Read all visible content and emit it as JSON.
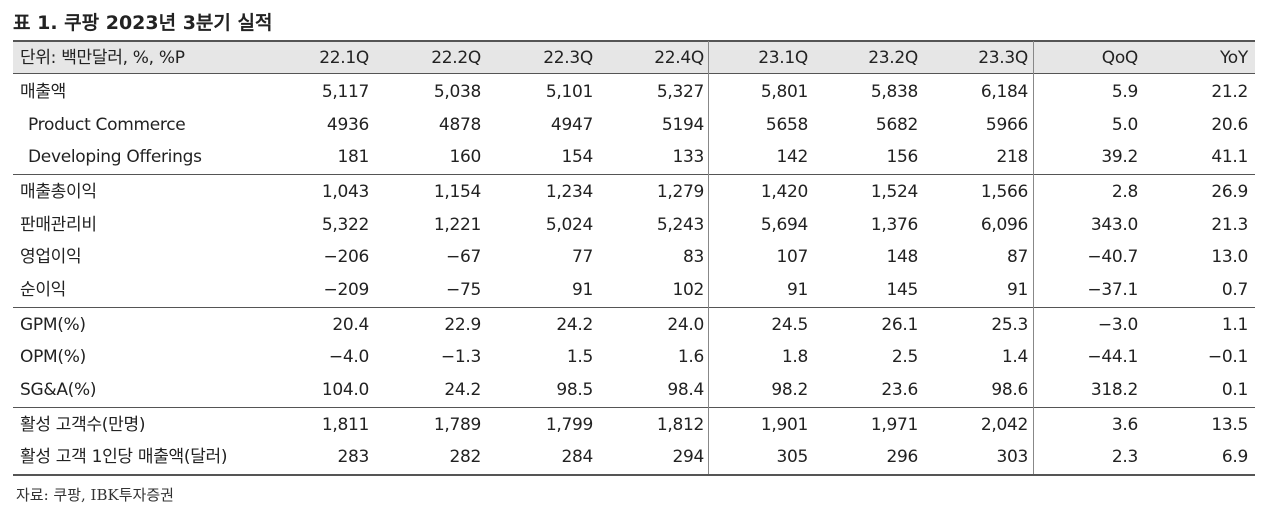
{
  "title": "표 1. 쿠팡 2023년 3분기 실적",
  "table": {
    "header": [
      "단위: 백만달러, %, %P",
      "22.1Q",
      "22.2Q",
      "22.3Q",
      "22.4Q",
      "23.1Q",
      "23.2Q",
      "23.3Q",
      "QoQ",
      "YoY"
    ],
    "groups": [
      [
        [
          "매출액",
          "5,117",
          "5,038",
          "5,101",
          "5,327",
          "5,801",
          "5,838",
          "6,184",
          "5.9",
          "21.2"
        ],
        [
          "Product Commerce",
          "4936",
          "4878",
          "4947",
          "5194",
          "5658",
          "5682",
          "5966",
          "5.0",
          "20.6"
        ],
        [
          "Developing Offerings",
          "181",
          "160",
          "154",
          "133",
          "142",
          "156",
          "218",
          "39.2",
          "41.1"
        ]
      ],
      [
        [
          "매출총이익",
          "1,043",
          "1,154",
          "1,234",
          "1,279",
          "1,420",
          "1,524",
          "1,566",
          "2.8",
          "26.9"
        ],
        [
          "판매관리비",
          "5,322",
          "1,221",
          "5,024",
          "5,243",
          "5,694",
          "1,376",
          "6,096",
          "343.0",
          "21.3"
        ],
        [
          "영업이익",
          "−206",
          "−67",
          "77",
          "83",
          "107",
          "148",
          "87",
          "−40.7",
          "13.0"
        ],
        [
          "순이익",
          "−209",
          "−75",
          "91",
          "102",
          "91",
          "145",
          "91",
          "−37.1",
          "0.7"
        ]
      ],
      [
        [
          "GPM(%)",
          "20.4",
          "22.9",
          "24.2",
          "24.0",
          "24.5",
          "26.1",
          "25.3",
          "−3.0",
          "1.1"
        ],
        [
          "OPM(%)",
          "−4.0",
          "−1.3",
          "1.5",
          "1.6",
          "1.8",
          "2.5",
          "1.4",
          "−44.1",
          "−0.1"
        ],
        [
          "SG&A(%)",
          "104.0",
          "24.2",
          "98.5",
          "98.4",
          "98.2",
          "23.6",
          "98.6",
          "318.2",
          "0.1"
        ]
      ],
      [
        [
          "활성 고객수(만명)",
          "1,811",
          "1,789",
          "1,799",
          "1,812",
          "1,901",
          "1,971",
          "2,042",
          "3.6",
          "13.5"
        ],
        [
          "활성 고객 1인당 매출액(달러)",
          "283",
          "282",
          "284",
          "294",
          "305",
          "296",
          "303",
          "2.3",
          "6.9"
        ]
      ]
    ]
  },
  "source": "자료: 쿠팡, IBK투자증권"
}
